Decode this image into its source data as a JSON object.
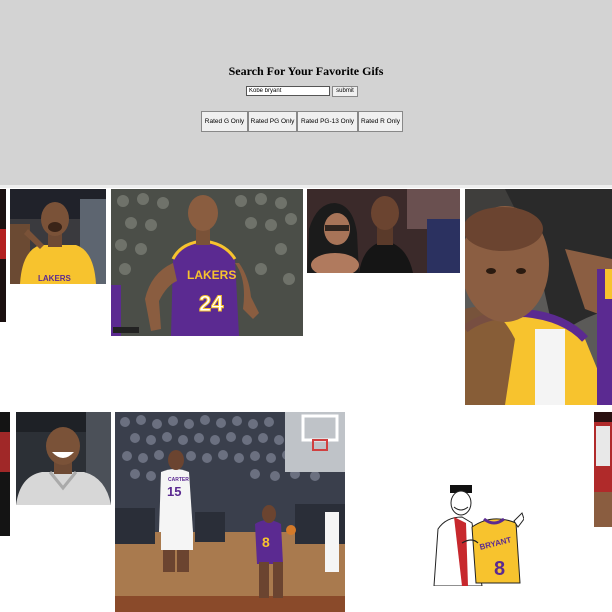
{
  "header": {
    "title": "Search For Your Favorite Gifs",
    "search_value": "Kobe bryant",
    "submit_label": "submit",
    "rating_buttons": [
      {
        "label": "Rated G Only"
      },
      {
        "label": "Rated PG Only"
      },
      {
        "label": "Rated PG-13 Only"
      },
      {
        "label": "Rated R Only"
      }
    ]
  },
  "gifs": [
    {
      "name": "gif-edge-left-1"
    },
    {
      "name": "gif-kobe-laughing"
    },
    {
      "name": "gif-kobe-24-purple"
    },
    {
      "name": "gif-kobe-courtside"
    },
    {
      "name": "gif-kobe-closeup"
    },
    {
      "name": "gif-edge-left-2"
    },
    {
      "name": "gif-kobe-smiling"
    },
    {
      "name": "gif-court-game"
    },
    {
      "name": "gif-cartoon-bryant-8"
    },
    {
      "name": "gif-edge-right-2"
    }
  ],
  "jersey": {
    "number_24": "24",
    "number_15": "15",
    "number_8": "8",
    "brand": "LAKERS",
    "player": "BRYANT",
    "away": "CARTER"
  },
  "colors": {
    "header_bg": "#d3d3d3",
    "lakers_purple": "#5b2a91",
    "lakers_gold": "#f7c32e"
  }
}
